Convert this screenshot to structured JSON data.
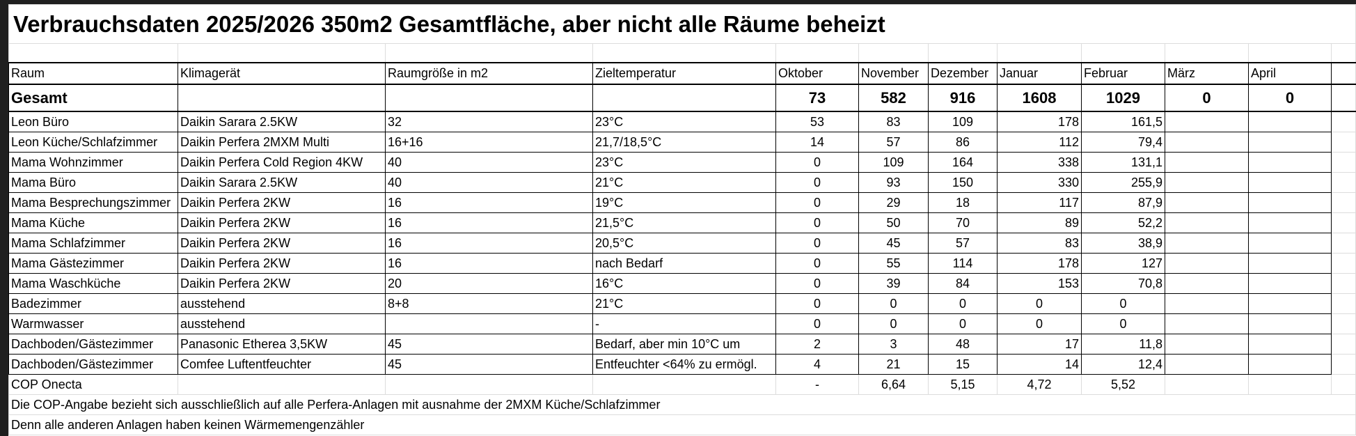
{
  "title": "Verbrauchsdaten 2025/2026 350m2 Gesamtfläche, aber nicht alle Räume beheizt",
  "columns": [
    "Raum",
    "Klimagerät",
    "Raumgröße in m2",
    "Zieltemperatur",
    "Oktober",
    "November",
    "Dezember",
    "Januar",
    "Februar",
    "März",
    "April"
  ],
  "rows": [
    [
      "Gesamt",
      null,
      null,
      null,
      73,
      582,
      916,
      1608,
      1029,
      0,
      0
    ],
    [
      "Leon Büro",
      "Daikin Sarara 2.5KW",
      "32",
      "23°C",
      53,
      83,
      109,
      178,
      "161,5",
      null,
      null
    ],
    [
      "Leon Küche/Schlafzimmer",
      "Daikin Perfera 2MXM Multi",
      "16+16",
      "21,7/18,5°C",
      14,
      57,
      86,
      112,
      "79,4",
      null,
      null
    ],
    [
      "Mama Wohnzimmer",
      "Daikin Perfera Cold Region 4KW",
      "40",
      "23°C",
      0,
      109,
      164,
      338,
      "131,1",
      null,
      null
    ],
    [
      "Mama Büro",
      "Daikin Sarara 2.5KW",
      "40",
      "21°C",
      0,
      93,
      150,
      330,
      "255,9",
      null,
      null
    ],
    [
      "Mama Besprechungszimmer",
      "Daikin Perfera 2KW",
      "16",
      "19°C",
      0,
      29,
      18,
      117,
      "87,9",
      null,
      null
    ],
    [
      "Mama Küche",
      "Daikin Perfera 2KW",
      "16",
      "21,5°C",
      0,
      50,
      70,
      89,
      "52,2",
      null,
      null
    ],
    [
      "Mama Schlafzimmer",
      "Daikin Perfera 2KW",
      "16",
      "20,5°C",
      0,
      45,
      57,
      83,
      "38,9",
      null,
      null
    ],
    [
      "Mama Gästezimmer",
      "Daikin Perfera 2KW",
      "16",
      "nach Bedarf",
      0,
      55,
      114,
      178,
      127,
      null,
      null
    ],
    [
      "Mama Waschküche",
      "Daikin Perfera 2KW",
      "20",
      "16°C",
      0,
      39,
      84,
      153,
      "70,8",
      null,
      null
    ],
    [
      "Badezimmer",
      "ausstehend",
      "8+8",
      "21°C",
      0,
      0,
      0,
      0,
      0,
      null,
      null
    ],
    [
      "Warmwasser",
      "ausstehend",
      null,
      "-",
      0,
      0,
      0,
      0,
      0,
      null,
      null
    ],
    [
      "Dachboden/Gästezimmer",
      "Panasonic Etherea 3,5KW",
      "45",
      "Bedarf, aber min 10°C um",
      2,
      3,
      48,
      17,
      "11,8",
      null,
      null
    ],
    [
      "Dachboden/Gästezimmer",
      "Comfee Luftentfeuchter",
      "45",
      "Entfeuchter  <64% zu ermögl.",
      4,
      21,
      15,
      14,
      "12,4",
      null,
      null
    ],
    [
      "COP Onecta",
      null,
      null,
      null,
      "-",
      "6,64",
      "5,15",
      "4,72",
      "5,52",
      null,
      null
    ]
  ],
  "notes": [
    "Die COP-Angabe bezieht sich ausschließlich auf alle Perfera-Anlagen mit ausnahme der 2MXM Küche/Schlafzimmer",
    "Denn alle anderen Anlagen haben keinen Wärmemengenzähler"
  ]
}
